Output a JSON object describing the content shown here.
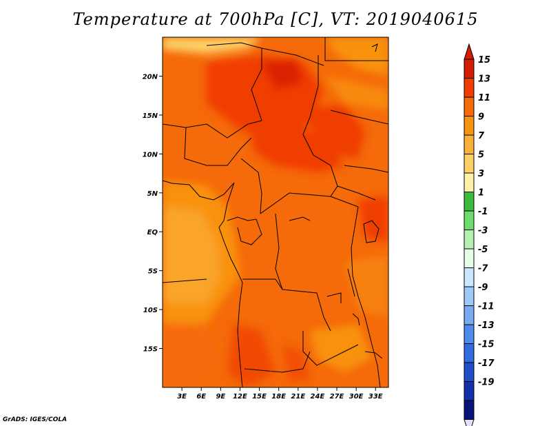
{
  "title": "Temperature at 700hPa [C], VT: 2019040615",
  "credit": "GrADS: IGES/COLA",
  "map": {
    "lon_range": [
      0,
      35
    ],
    "lat_range": [
      -20,
      25
    ],
    "lat_ticks": [
      {
        "value": 20,
        "label": "20N"
      },
      {
        "value": 15,
        "label": "15N"
      },
      {
        "value": 10,
        "label": "10N"
      },
      {
        "value": 5,
        "label": "5N"
      },
      {
        "value": 0,
        "label": "EQ"
      },
      {
        "value": -5,
        "label": "5S"
      },
      {
        "value": -10,
        "label": "10S"
      },
      {
        "value": -15,
        "label": "15S"
      }
    ],
    "lon_ticks": [
      {
        "value": 3,
        "label": "3E"
      },
      {
        "value": 6,
        "label": "6E"
      },
      {
        "value": 9,
        "label": "9E"
      },
      {
        "value": 12,
        "label": "12E"
      },
      {
        "value": 15,
        "label": "15E"
      },
      {
        "value": 18,
        "label": "18E"
      },
      {
        "value": 21,
        "label": "21E"
      },
      {
        "value": 24,
        "label": "24E"
      },
      {
        "value": 27,
        "label": "27E"
      },
      {
        "value": 30,
        "label": "30E"
      },
      {
        "value": 33,
        "label": "33E"
      }
    ]
  },
  "colorbar": {
    "labels": [
      "15",
      "13",
      "11",
      "9",
      "7",
      "5",
      "3",
      "1",
      "-1",
      "-3",
      "-5",
      "-7",
      "-9",
      "-11",
      "-13",
      "-15",
      "-17",
      "-19"
    ],
    "colors": [
      "#d41c00",
      "#f03c00",
      "#f56a0a",
      "#f89211",
      "#fbb03a",
      "#fdd068",
      "#fff2a6",
      "#3cbc3c",
      "#6cdc6c",
      "#b4f0b0",
      "#e6ffe6",
      "#c8e8ff",
      "#9ccaf9",
      "#7aaaf0",
      "#4e8aec",
      "#2e6ce0",
      "#1e4ec8",
      "#1230a8",
      "#081478"
    ],
    "top_arrow_color": "#d41c00",
    "bottom_arrow_color": "#e1e1ff"
  }
}
